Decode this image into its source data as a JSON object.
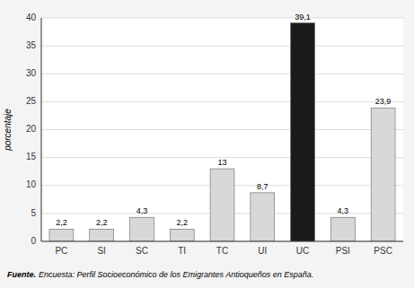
{
  "chart_data": {
    "type": "bar",
    "categories": [
      "PC",
      "SI",
      "SC",
      "TI",
      "TC",
      "UI",
      "UC",
      "PSI",
      "PSC"
    ],
    "values": [
      2.2,
      2.2,
      4.3,
      2.2,
      13.0,
      8.7,
      39.1,
      4.3,
      23.9
    ],
    "value_labels": [
      "2,2",
      "2,2",
      "4,3",
      "2,2",
      "13",
      "8,7",
      "39,1",
      "4,3",
      "23,9"
    ],
    "data_labels": true,
    "colors": [
      "#d8d8d8",
      "#d8d8d8",
      "#d8d8d8",
      "#d8d8d8",
      "#d8d8d8",
      "#d8d8d8",
      "#1a1a1a",
      "#d8d8d8",
      "#d8d8d8"
    ],
    "ylabel": "porcentaje",
    "ylim": [
      0,
      40
    ],
    "yticks": [
      0,
      5,
      10,
      15,
      20,
      25,
      30,
      35,
      40
    ],
    "grid": true,
    "annotations": [
      "Fuente.",
      "Encuesta: Perfil Socioeconómico de los Emigrantes Antioqueños en España."
    ]
  }
}
